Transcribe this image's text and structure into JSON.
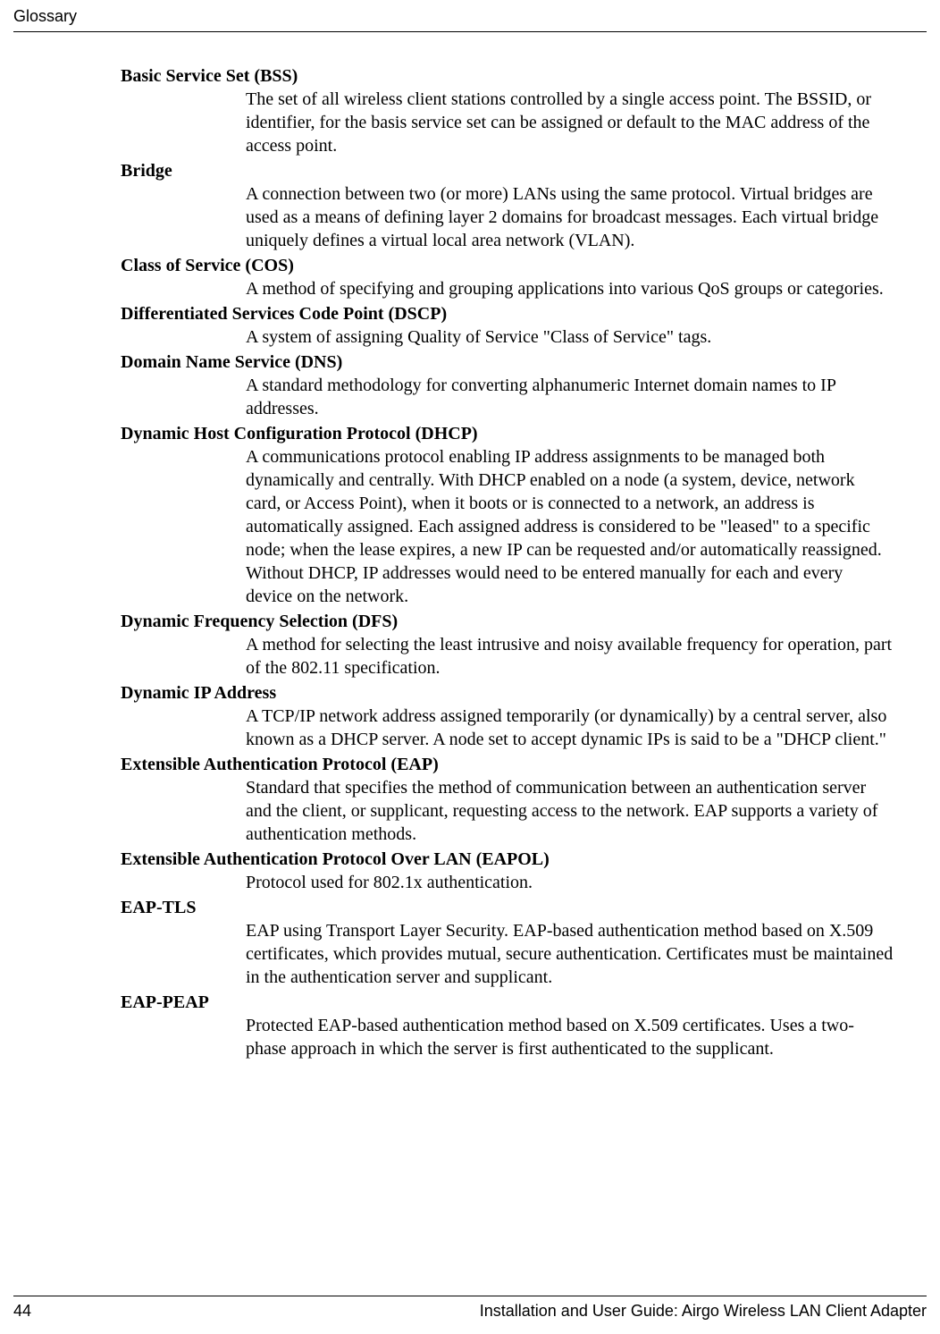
{
  "header": {
    "section": "Glossary"
  },
  "entries": [
    {
      "term": "Basic Service Set (BSS)",
      "definition": "The set of all wireless client stations controlled by a single access point. The BSSID, or identifier, for the basis service set can be assigned or default to the MAC address of the access point."
    },
    {
      "term": "Bridge",
      "definition": "A connection between two (or more) LANs using the same protocol. Virtual bridges are used as a means of defining layer 2 domains for broadcast messages. Each virtual bridge uniquely defines a virtual local area network (VLAN)."
    },
    {
      "term": "Class of Service (COS)",
      "definition": "A method of specifying and grouping applications into various QoS groups or categories."
    },
    {
      "term": "Differentiated Services Code Point (DSCP)",
      "definition": "A system of assigning Quality of Service \"Class of Service\" tags."
    },
    {
      "term": "Domain Name Service (DNS)",
      "definition": "A standard methodology for converting alphanumeric Internet domain names to IP addresses."
    },
    {
      "term": "Dynamic Host Configuration Protocol (DHCP)",
      "definition": "A communications protocol enabling IP address assignments to be managed both dynamically and centrally. With DHCP enabled on a node (a system, device, network card, or Access Point), when it boots or is connected to a network, an address is automatically assigned. Each assigned address is considered to be \"leased\" to a specific node; when the lease expires, a new IP can be requested and/or automatically reassigned. Without DHCP, IP addresses would need to be entered manually for each and every device on the network."
    },
    {
      "term": "Dynamic Frequency Selection (DFS)",
      "definition": "A method for selecting the least intrusive and noisy available frequency for operation, part of the 802.11 specification."
    },
    {
      "term": "Dynamic IP Address",
      "definition": "A TCP/IP network address assigned temporarily (or dynamically) by a central server, also known as a DHCP server. A node set to accept dynamic IPs is said to be a \"DHCP client.\""
    },
    {
      "term": "Extensible Authentication Protocol (EAP)",
      "definition": "Standard that specifies the method of communication between an authentication server and the client, or supplicant, requesting access to the network. EAP supports a variety of authentication methods."
    },
    {
      "term": "Extensible Authentication Protocol Over LAN (EAPOL)",
      "definition": "Protocol used for 802.1x authentication."
    },
    {
      "term": "EAP-TLS",
      "definition": "EAP using Transport Layer Security. EAP-based authentication method based on X.509 certificates, which provides mutual, secure authentication. Certificates must be maintained in the authentication server and supplicant."
    },
    {
      "term": "EAP-PEAP",
      "definition": "Protected EAP-based authentication method based on X.509 certificates. Uses a two-phase approach in which the server is first authenticated to the supplicant."
    }
  ],
  "footer": {
    "page_number": "44",
    "title": "Installation and User Guide: Airgo Wireless LAN Client Adapter"
  }
}
